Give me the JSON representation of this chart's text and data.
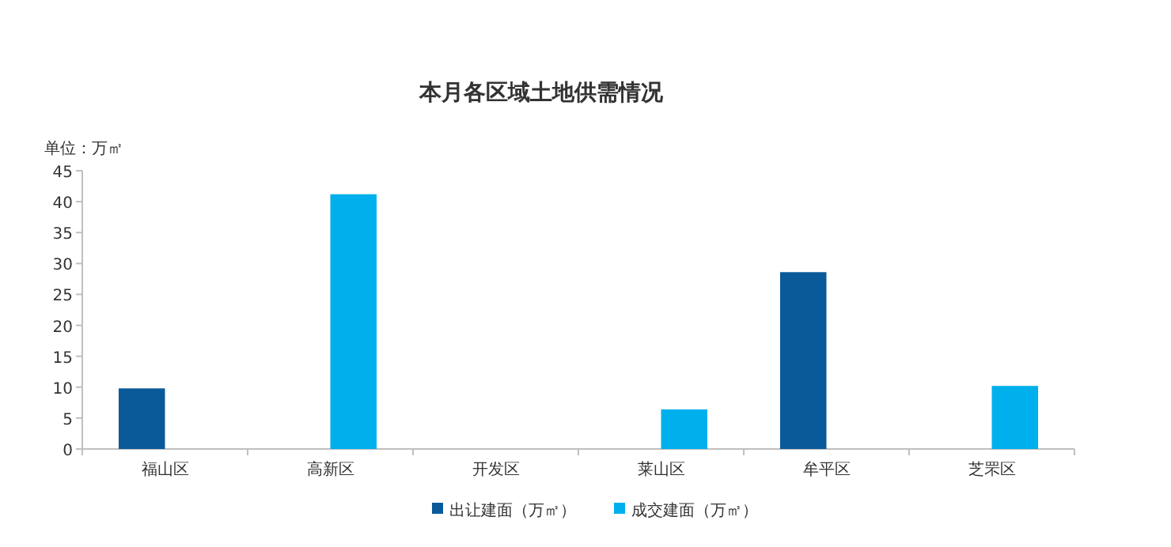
{
  "chart_data": {
    "type": "bar",
    "title": "本月各区域土地供需情况",
    "ylabel": "单位：万㎡",
    "categories": [
      "福山区",
      "高新区",
      "开发区",
      "莱山区",
      "牟平区",
      "芝罘区"
    ],
    "series": [
      {
        "name": "出让建面（万㎡）",
        "color": "#0a5a9a",
        "values": [
          9.8,
          null,
          null,
          null,
          28.6,
          null
        ]
      },
      {
        "name": "成交建面（万㎡）",
        "color": "#00b0ec",
        "values": [
          null,
          41.2,
          null,
          6.4,
          null,
          10.2
        ]
      }
    ],
    "ylim": [
      0,
      45
    ],
    "yticks": [
      0,
      5,
      10,
      15,
      20,
      25,
      30,
      35,
      40,
      45
    ],
    "grid": false,
    "legend": "bottom"
  }
}
